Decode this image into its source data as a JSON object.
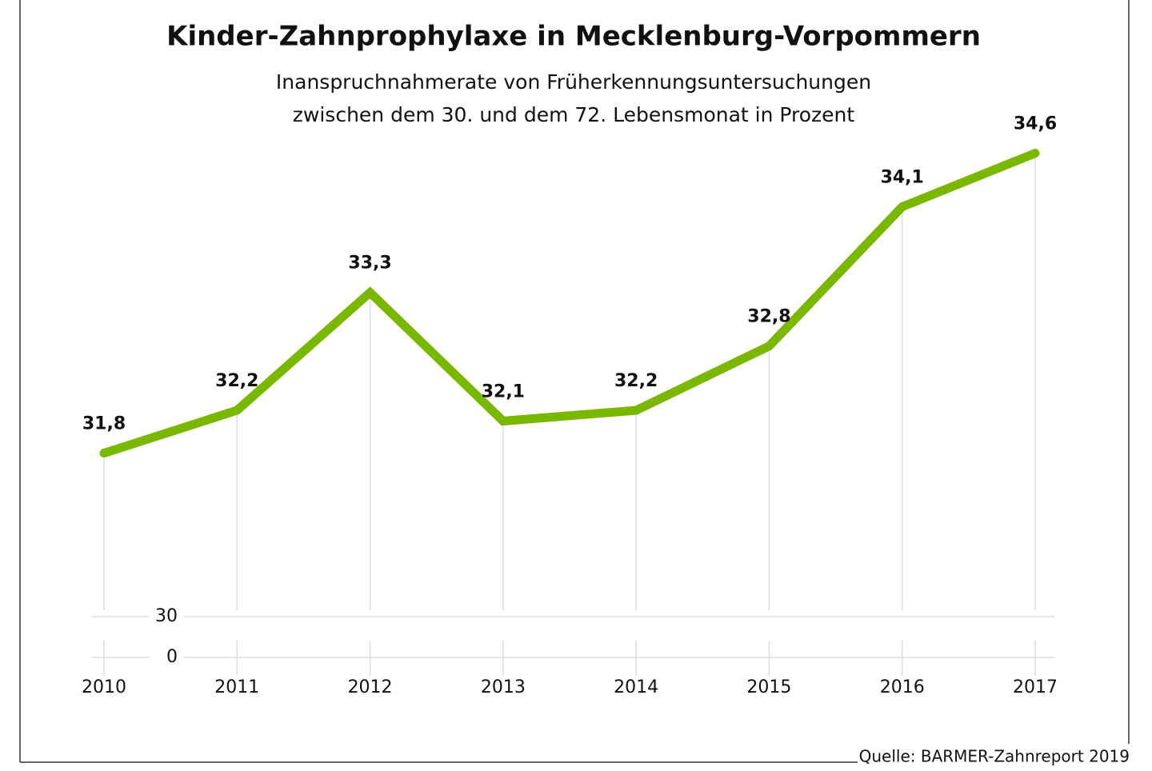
{
  "chart_data": {
    "type": "line",
    "title": "Kinder-Zahnprophylaxe in Mecklenburg-Vorpommern",
    "subtitle": [
      "Inanspruchnahmerate von Früherkennungsuntersuchungen",
      "zwischen dem 30. und dem 72. Lebensmonat in Prozent"
    ],
    "source": "Quelle: BARMER-Zahnreport 2019",
    "categories": [
      "2010",
      "2011",
      "2012",
      "2013",
      "2014",
      "2015",
      "2016",
      "2017"
    ],
    "series": [
      {
        "name": "Inanspruchnahmerate",
        "color": "#7ab800",
        "values": [
          31.8,
          32.2,
          33.3,
          32.1,
          32.2,
          32.8,
          34.1,
          34.6
        ],
        "value_labels": [
          "31,8",
          "32,2",
          "33,3",
          "32,1",
          "32,2",
          "32,8",
          "34,1",
          "34,6"
        ]
      }
    ],
    "ylim": [
      0,
      35
    ],
    "y_break": [
      30,
      31.2
    ],
    "yticks": [
      0,
      30
    ],
    "grid": true
  }
}
